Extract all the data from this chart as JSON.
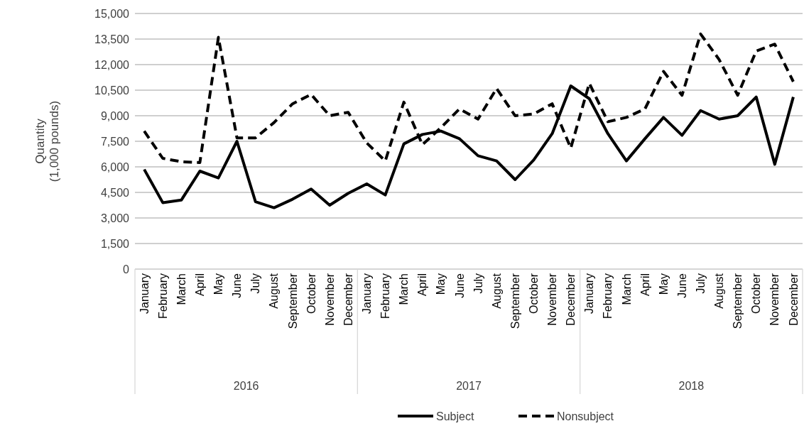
{
  "chart_data": {
    "type": "line",
    "ylabel": "Quantity\n(1,000 pounds)",
    "categories": [
      "January",
      "February",
      "March",
      "April",
      "May",
      "June",
      "July",
      "August",
      "September",
      "October",
      "November",
      "December",
      "January",
      "February",
      "March",
      "April",
      "May",
      "June",
      "July",
      "August",
      "September",
      "October",
      "November",
      "December",
      "January",
      "February",
      "March",
      "April",
      "May",
      "June",
      "July",
      "August",
      "September",
      "October",
      "November",
      "December"
    ],
    "annotations": [
      "2016",
      "2017",
      "2018"
    ],
    "series": [
      {
        "name": "Subject",
        "color": "#000000",
        "line_style": "solid",
        "values": [
          5850,
          3900,
          4050,
          5750,
          5350,
          7500,
          3950,
          3600,
          4100,
          4700,
          3750,
          4450,
          5000,
          4350,
          7350,
          7900,
          8100,
          7650,
          6650,
          6350,
          5250,
          6400,
          7950,
          10750,
          10000,
          7950,
          6350,
          7650,
          8900,
          7850,
          9300,
          8800,
          9000,
          10100,
          6150,
          10100
        ]
      },
      {
        "name": "Nonsubject",
        "color": "#000000",
        "line_style": "dashed",
        "values": [
          8100,
          6500,
          6300,
          6250,
          13600,
          7700,
          7700,
          8600,
          9700,
          10250,
          9000,
          9200,
          7400,
          6350,
          9800,
          7300,
          8300,
          9400,
          8800,
          10600,
          9000,
          9100,
          9700,
          7100,
          10900,
          8650,
          8900,
          9400,
          11600,
          10200,
          13800,
          12300,
          10200,
          12800,
          13200,
          11000
        ]
      }
    ],
    "ylim": [
      0,
      15000
    ],
    "yticks": [
      {
        "value": 0,
        "label": "0"
      },
      {
        "value": 1500,
        "label": "1,500"
      },
      {
        "value": 3000,
        "label": "3,000"
      },
      {
        "value": 4500,
        "label": "4,500"
      },
      {
        "value": 6000,
        "label": "6,000"
      },
      {
        "value": 7500,
        "label": "7,500"
      },
      {
        "value": 9000,
        "label": "9,000"
      },
      {
        "value": 10500,
        "label": "10,500"
      },
      {
        "value": 12000,
        "label": "12,000"
      },
      {
        "value": 13500,
        "label": "13,500"
      },
      {
        "value": 15000,
        "label": "15,000"
      }
    ],
    "grid": "y",
    "legend": "bottom"
  }
}
